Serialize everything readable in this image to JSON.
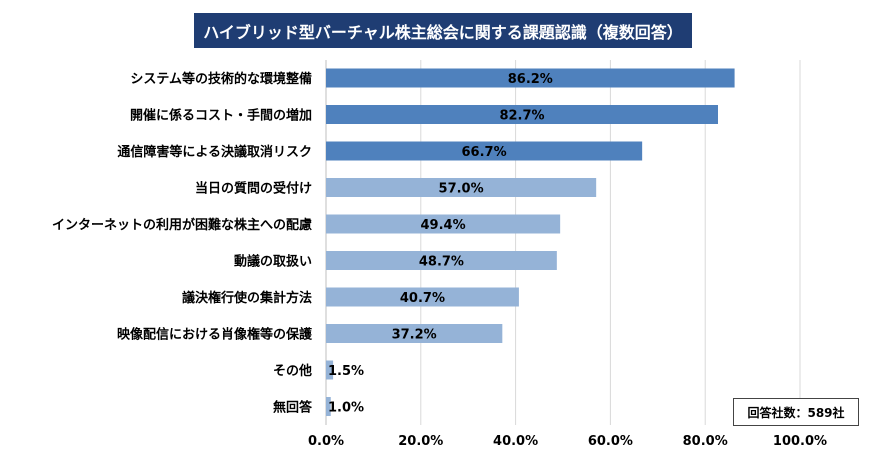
{
  "chart_data": {
    "type": "bar",
    "orientation": "horizontal",
    "title": "ハイブリッド型バーチャル株主総会に関する課題認識（複数回答）",
    "categories": [
      "システム等の技術的な環境整備",
      "開催に係るコスト・手間の増加",
      "通信障害等による決議取消リスク",
      "当日の質問の受付け",
      "インターネットの利用が困難な株主への配慮",
      "動議の取扱い",
      "議決権行使の集計方法",
      "映像配信における肖像権等の保護",
      "その他",
      "無回答"
    ],
    "values": [
      86.2,
      82.7,
      66.7,
      57.0,
      49.4,
      48.7,
      40.7,
      37.2,
      1.5,
      1.0
    ],
    "value_labels": [
      "86.2%",
      "82.7%",
      "66.7%",
      "57.0%",
      "49.4%",
      "48.7%",
      "40.7%",
      "37.2%",
      "1.5%",
      "1.0%"
    ],
    "xlim": [
      0,
      100
    ],
    "xticks": [
      0,
      20,
      40,
      60,
      80,
      100
    ],
    "xtick_labels": [
      "0.0%",
      "20.0%",
      "40.0%",
      "60.0%",
      "80.0%",
      "100.0%"
    ],
    "grid": true,
    "colors": {
      "dark": "#4f81bd",
      "light": "#95b3d7",
      "grid": "#d9d9d9",
      "title_bg": "#1f3d73"
    },
    "dark_bar_count": 3
  },
  "note": "回答社数：589社"
}
